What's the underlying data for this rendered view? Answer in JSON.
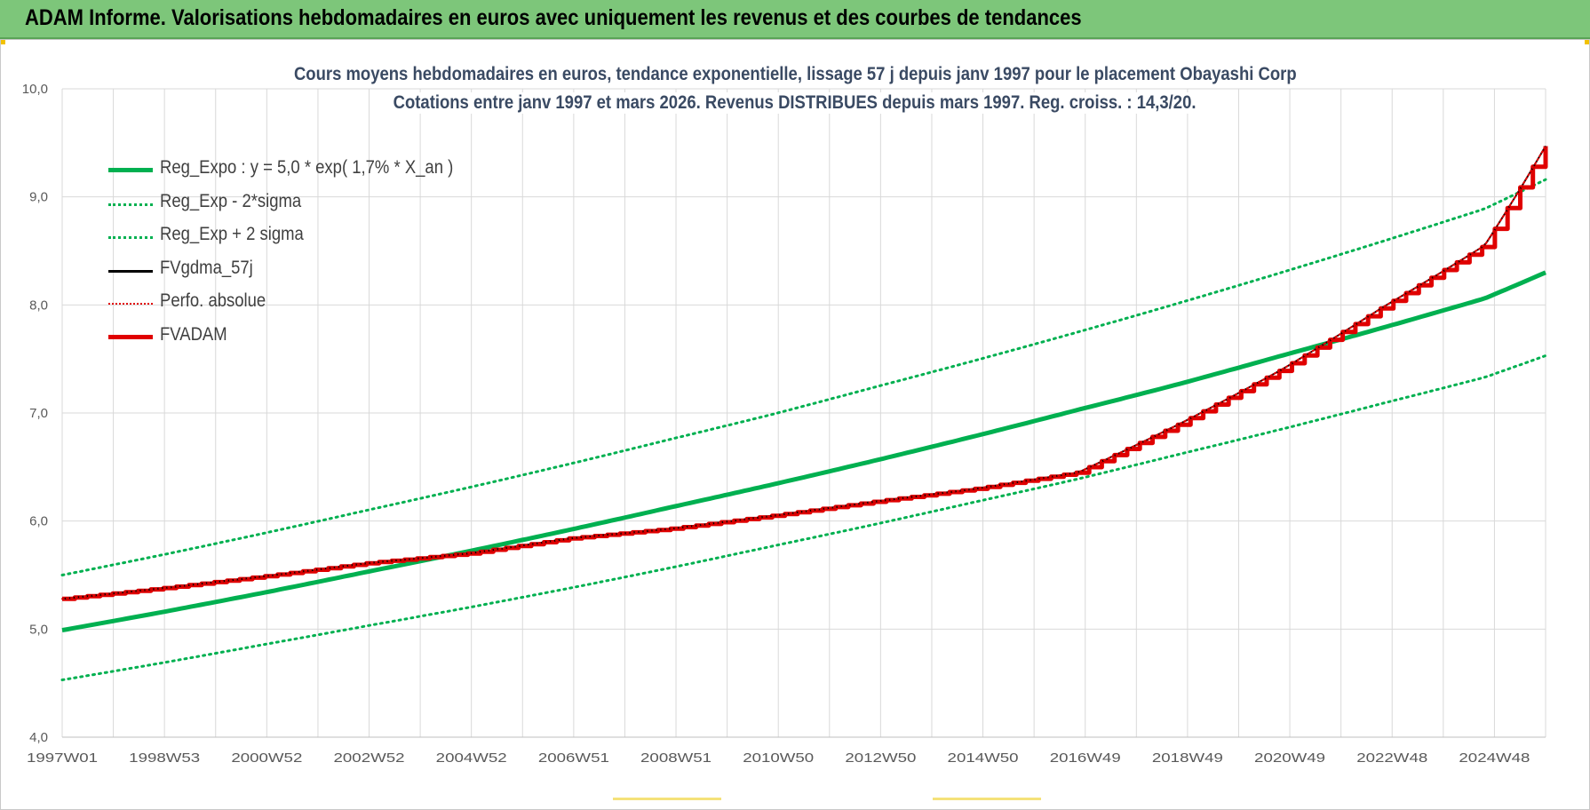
{
  "banner": {
    "title": "ADAM Informe. Valorisations hebdomadaires en euros avec uniquement les revenus et des courbes de tendances"
  },
  "colors": {
    "banner_bg": "#7dc67a",
    "green": "#00b050",
    "red": "#e00000",
    "black": "#000000",
    "grid": "#d9d9d9"
  },
  "chart_data": {
    "type": "line",
    "title": "Cours moyens hebdomadaires en euros, tendance exponentielle, lissage 57 j depuis janv 1997 pour le placement Obayashi Corp",
    "subtitle": "Cotations entre janv 1997 et mars 2026. Revenus DISTRIBUES depuis mars 1997. Reg. croiss. : 14,3/20.",
    "xlabel": "",
    "ylabel": "",
    "ylim": [
      4.0,
      10.0
    ],
    "y_ticks": [
      "4,0",
      "5,0",
      "6,0",
      "7,0",
      "8,0",
      "9,0",
      "10,0"
    ],
    "x_ticks": [
      "1997W01",
      "1998W53",
      "2000W52",
      "2002W52",
      "2004W52",
      "2006W51",
      "2008W51",
      "2010W50",
      "2012W50",
      "2014W50",
      "2016W49",
      "2018W49",
      "2020W49",
      "2022W48",
      "2024W48"
    ],
    "x_range": [
      "1997W01",
      "2026W12"
    ],
    "grid": true,
    "legend_position": "top-left",
    "x": [
      "1997",
      "1999",
      "2001",
      "2003",
      "2005",
      "2007",
      "2009",
      "2011",
      "2013",
      "2015",
      "2017",
      "2019",
      "2021",
      "2023",
      "2025",
      "2026.2"
    ],
    "series": [
      {
        "name": "Reg_Expo : y = 5,0 * exp( 1,7% *  X_an )",
        "style": "solid-thick",
        "color": "#00b050",
        "values": [
          4.99,
          5.16,
          5.34,
          5.53,
          5.72,
          5.92,
          6.13,
          6.34,
          6.56,
          6.79,
          7.03,
          7.27,
          7.53,
          7.79,
          8.06,
          8.3
        ]
      },
      {
        "name": "Reg_Exp - 2*sigma",
        "style": "dotted",
        "color": "#00b050",
        "values": [
          4.53,
          4.69,
          4.86,
          5.03,
          5.2,
          5.38,
          5.57,
          5.77,
          5.97,
          6.18,
          6.39,
          6.62,
          6.85,
          7.09,
          7.33,
          7.53
        ]
      },
      {
        "name": "Reg_Exp + 2 sigma",
        "style": "dotted",
        "color": "#00b050",
        "values": [
          5.5,
          5.69,
          5.89,
          6.1,
          6.31,
          6.53,
          6.76,
          6.99,
          7.24,
          7.49,
          7.75,
          8.02,
          8.3,
          8.59,
          8.89,
          9.16
        ]
      },
      {
        "name": "FVgdma_57j",
        "style": "solid-thin",
        "color": "#000000",
        "values": [
          5.28,
          5.38,
          5.49,
          5.61,
          5.7,
          5.84,
          5.93,
          6.05,
          6.18,
          6.3,
          6.45,
          6.9,
          7.4,
          7.98,
          8.55,
          9.47
        ]
      },
      {
        "name": "Perfo. absolue",
        "style": "dotted-thin",
        "color": "#e00000",
        "values": [
          5.28,
          5.38,
          5.49,
          5.61,
          5.7,
          5.84,
          5.93,
          6.05,
          6.18,
          6.3,
          6.45,
          6.9,
          7.4,
          7.98,
          8.55,
          9.47
        ]
      },
      {
        "name": "FVADAM",
        "style": "step-thick",
        "color": "#e00000",
        "values": [
          5.28,
          5.38,
          5.49,
          5.61,
          5.7,
          5.84,
          5.93,
          6.05,
          6.18,
          6.3,
          6.45,
          6.9,
          7.4,
          7.98,
          8.55,
          9.47
        ]
      }
    ]
  }
}
